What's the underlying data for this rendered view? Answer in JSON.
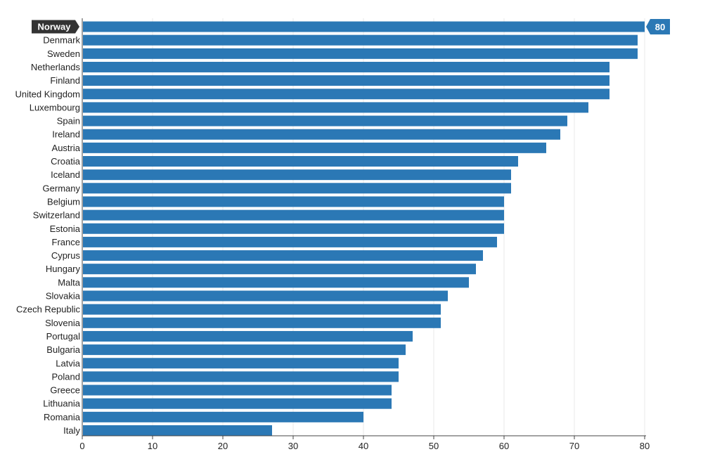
{
  "chart_data": {
    "type": "bar",
    "orientation": "horizontal",
    "title": "",
    "xlabel": "",
    "ylabel": "",
    "xlim": [
      0,
      80
    ],
    "x_ticks": [
      0,
      10,
      20,
      30,
      40,
      50,
      60,
      70,
      80
    ],
    "grid": true,
    "bar_color": "#2b78b5",
    "categories": [
      "Norway",
      "Denmark",
      "Sweden",
      "Netherlands",
      "Finland",
      "United Kingdom",
      "Luxembourg",
      "Spain",
      "Ireland",
      "Austria",
      "Croatia",
      "Iceland",
      "Germany",
      "Belgium",
      "Switzerland",
      "Estonia",
      "France",
      "Cyprus",
      "Hungary",
      "Malta",
      "Slovakia",
      "Czech Republic",
      "Slovenia",
      "Portugal",
      "Bulgaria",
      "Latvia",
      "Poland",
      "Greece",
      "Lithuania",
      "Romania",
      "Italy"
    ],
    "values": [
      80,
      79,
      79,
      75,
      75,
      75,
      72,
      69,
      68,
      66,
      62,
      61,
      61,
      60,
      60,
      60,
      59,
      57,
      56,
      55,
      52,
      51,
      51,
      47,
      46,
      45,
      45,
      44,
      44,
      40,
      27
    ],
    "highlight": {
      "category": "Norway",
      "value_label": "80",
      "label_background": "#333333",
      "value_background": "#2b78b5"
    }
  }
}
